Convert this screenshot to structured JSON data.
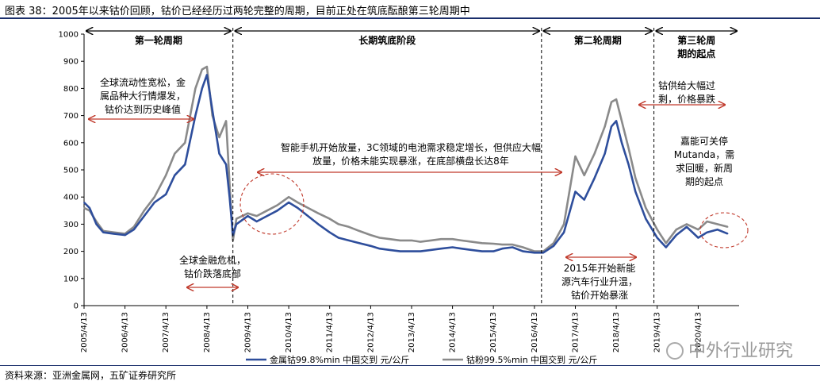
{
  "title": "图表 38：2005年以来钴价回顾，钴价已经经历过两轮完整的周期，目前正处在筑底酝酿第三轮周期中",
  "source": "资料来源：亚洲金属网，五矿证券研究所",
  "watermark": "中外行业研究",
  "phases": [
    {
      "label": "第一轮周期",
      "start": "2005/4/13",
      "end": "2008/12/1"
    },
    {
      "label": "长期筑底阶段",
      "start": "2008/12/1",
      "end": "2016/6/15"
    },
    {
      "label": "第二轮周期",
      "start": "2016/6/15",
      "end": "2019/3/15"
    },
    {
      "label": "第三轮周期的起点",
      "start": "2019/3/15",
      "end": "2021/4/13"
    }
  ],
  "annotations": [
    {
      "lines": [
        "全球流动性宽松，金",
        "属品种大行情爆发，",
        "钴价达到历史峰值"
      ]
    },
    {
      "lines": [
        "全球金融危机，",
        "钴价跌落底部"
      ]
    },
    {
      "lines": [
        "智能手机开始放量，3C领域的电池需求稳定增长，但供应大幅",
        "放量，价格未能实现暴涨，在底部横盘长达8年"
      ]
    },
    {
      "lines": [
        "2015年开始新能",
        "源汽车行业升温，",
        "钴价开始暴涨"
      ]
    },
    {
      "lines": [
        "钴供给大幅过",
        "剩，价格暴跌"
      ]
    },
    {
      "lines": [
        "嘉能可关停",
        "Mutanda，需",
        "求回暖，新周",
        "期的起点"
      ]
    }
  ],
  "chart_data": {
    "type": "line",
    "title": "",
    "xlabel": "",
    "ylabel": "",
    "ylim": [
      0,
      1000
    ],
    "yticks": [
      0,
      100,
      200,
      300,
      400,
      500,
      600,
      700,
      800,
      900,
      1000
    ],
    "xticks": [
      "2005/4/13",
      "2006/4/13",
      "2007/4/13",
      "2008/4/13",
      "2009/4/13",
      "2010/4/13",
      "2011/4/13",
      "2012/4/13",
      "2013/4/13",
      "2014/4/13",
      "2015/4/13",
      "2016/4/13",
      "2017/4/13",
      "2018/4/13",
      "2019/4/13",
      "2020/4/13"
    ],
    "grid": false,
    "legend_position": "bottom",
    "series": [
      {
        "name": "金属钴99.8%min 中国交到 元/公斤",
        "color": "#2e4e9c",
        "x": [
          "2005/4/13",
          "2005/6/1",
          "2005/8/1",
          "2005/10/1",
          "2006/1/1",
          "2006/4/13",
          "2006/7/1",
          "2006/10/1",
          "2007/1/1",
          "2007/4/13",
          "2007/7/1",
          "2007/10/1",
          "2008/1/1",
          "2008/3/1",
          "2008/4/13",
          "2008/6/1",
          "2008/8/1",
          "2008/10/1",
          "2008/11/1",
          "2008/12/1",
          "2009/1/1",
          "2009/4/13",
          "2009/7/1",
          "2009/10/1",
          "2010/1/1",
          "2010/4/13",
          "2010/7/1",
          "2010/10/1",
          "2011/1/1",
          "2011/4/13",
          "2011/7/1",
          "2011/10/1",
          "2012/1/1",
          "2012/4/13",
          "2012/7/1",
          "2012/10/1",
          "2013/1/1",
          "2013/4/13",
          "2013/7/1",
          "2013/10/1",
          "2014/1/1",
          "2014/4/13",
          "2014/7/1",
          "2014/10/1",
          "2015/1/1",
          "2015/4/13",
          "2015/7/1",
          "2015/10/1",
          "2016/1/1",
          "2016/4/13",
          "2016/7/1",
          "2016/10/1",
          "2017/1/1",
          "2017/4/13",
          "2017/7/1",
          "2017/10/1",
          "2018/1/1",
          "2018/3/1",
          "2018/4/13",
          "2018/6/1",
          "2018/8/1",
          "2018/10/1",
          "2019/1/1",
          "2019/4/13",
          "2019/7/1",
          "2019/10/1",
          "2020/1/1",
          "2020/4/13",
          "2020/7/1",
          "2020/10/1",
          "2021/1/1"
        ],
        "values": [
          380,
          360,
          300,
          270,
          265,
          260,
          280,
          330,
          380,
          410,
          480,
          520,
          700,
          800,
          850,
          720,
          560,
          520,
          400,
          260,
          300,
          330,
          310,
          330,
          350,
          380,
          360,
          330,
          300,
          270,
          250,
          240,
          230,
          220,
          210,
          205,
          200,
          200,
          200,
          205,
          210,
          215,
          210,
          205,
          200,
          200,
          210,
          215,
          200,
          195,
          195,
          220,
          270,
          420,
          390,
          470,
          560,
          660,
          680,
          600,
          520,
          420,
          320,
          250,
          215,
          260,
          290,
          250,
          270,
          280,
          265
        ]
      },
      {
        "name": "钴粉99.5%min 中国交到 元/公斤",
        "color": "#8a8a8a",
        "x": [
          "2005/4/13",
          "2005/6/1",
          "2005/8/1",
          "2005/10/1",
          "2006/1/1",
          "2006/4/13",
          "2006/7/1",
          "2006/10/1",
          "2007/1/1",
          "2007/4/13",
          "2007/7/1",
          "2007/10/1",
          "2008/1/1",
          "2008/3/1",
          "2008/4/13",
          "2008/6/1",
          "2008/8/1",
          "2008/10/1",
          "2008/11/1",
          "2008/12/1",
          "2009/1/1",
          "2009/4/13",
          "2009/7/1",
          "2009/10/1",
          "2010/1/1",
          "2010/4/13",
          "2010/7/1",
          "2010/10/1",
          "2011/1/1",
          "2011/4/13",
          "2011/7/1",
          "2011/10/1",
          "2012/1/1",
          "2012/4/13",
          "2012/7/1",
          "2012/10/1",
          "2013/1/1",
          "2013/4/13",
          "2013/7/1",
          "2013/10/1",
          "2014/1/1",
          "2014/4/13",
          "2014/7/1",
          "2014/10/1",
          "2015/1/1",
          "2015/4/13",
          "2015/7/1",
          "2015/10/1",
          "2016/1/1",
          "2016/4/13",
          "2016/7/1",
          "2016/10/1",
          "2017/1/1",
          "2017/4/13",
          "2017/7/1",
          "2017/10/1",
          "2018/1/1",
          "2018/3/1",
          "2018/4/13",
          "2018/6/1",
          "2018/8/1",
          "2018/10/1",
          "2019/1/1",
          "2019/4/13",
          "2019/7/1",
          "2019/10/1",
          "2020/1/1",
          "2020/4/13",
          "2020/7/1",
          "2020/10/1",
          "2021/1/1"
        ],
        "values": [
          360,
          350,
          310,
          275,
          270,
          265,
          290,
          350,
          400,
          480,
          560,
          600,
          800,
          870,
          880,
          700,
          620,
          680,
          450,
          240,
          320,
          340,
          330,
          350,
          370,
          400,
          380,
          360,
          340,
          320,
          300,
          290,
          275,
          260,
          250,
          245,
          240,
          240,
          235,
          240,
          245,
          245,
          240,
          235,
          230,
          228,
          225,
          225,
          215,
          200,
          200,
          230,
          300,
          550,
          480,
          560,
          660,
          750,
          760,
          680,
          580,
          470,
          360,
          280,
          230,
          280,
          300,
          280,
          310,
          300,
          290
        ]
      }
    ]
  }
}
